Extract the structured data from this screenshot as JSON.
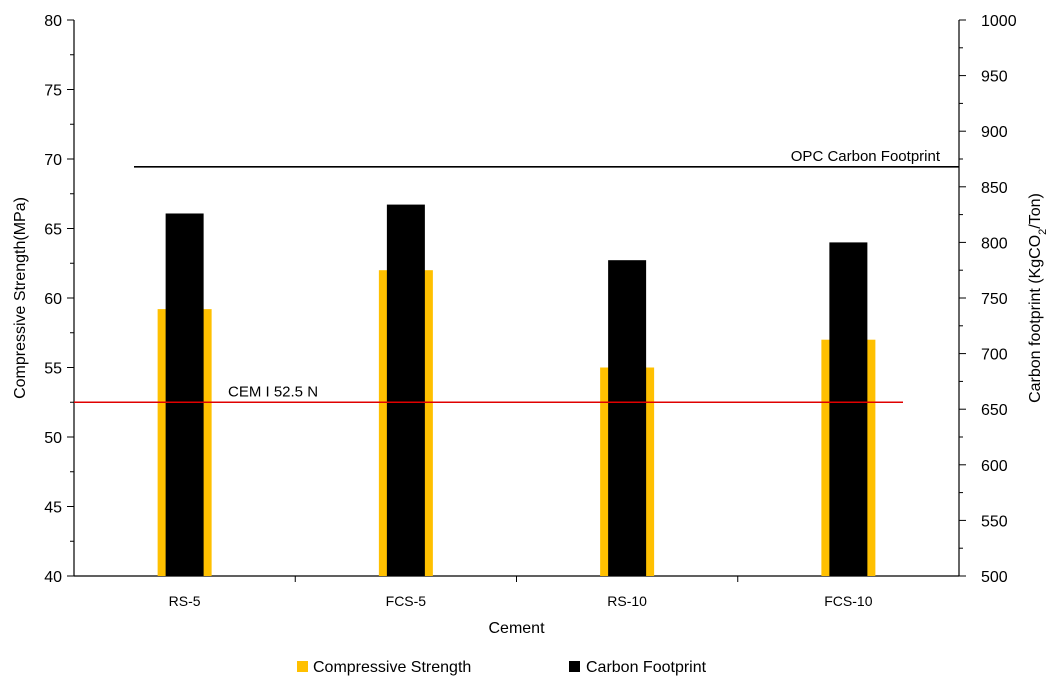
{
  "chart_data": {
    "type": "bar",
    "categories": [
      "RS-5",
      "FCS-5",
      "RS-10",
      "FCS-10"
    ],
    "series": [
      {
        "name": "Compressive Strength",
        "axis": "left",
        "color": "#FFC000",
        "values": [
          59.2,
          62.0,
          55.0,
          57.0
        ]
      },
      {
        "name": "Carbon Footprint",
        "axis": "right",
        "color": "#000000",
        "values": [
          826,
          834,
          784,
          800
        ]
      }
    ],
    "xlabel": "Cement",
    "ylabel": "Compressive Strength(MPa)",
    "ylabel_right": {
      "prefix": "Carbon footprint (KgCO",
      "sub": "2",
      "suffix": "/Ton)"
    },
    "ylim": [
      40,
      80
    ],
    "ylim_right": [
      500,
      1000
    ],
    "yticks": [
      40,
      45,
      50,
      55,
      60,
      65,
      70,
      75,
      80
    ],
    "yticks_right": [
      500,
      550,
      600,
      650,
      700,
      750,
      800,
      850,
      900,
      950,
      1000
    ],
    "reference_lines": [
      {
        "label": "CEM I 52.5 N",
        "axis": "left",
        "value": 52.5,
        "color": "#E00000"
      },
      {
        "label": "OPC Carbon Footprint",
        "axis": "right",
        "value": 868,
        "color": "#000000"
      }
    ],
    "grid": false,
    "legend_position": "bottom"
  }
}
